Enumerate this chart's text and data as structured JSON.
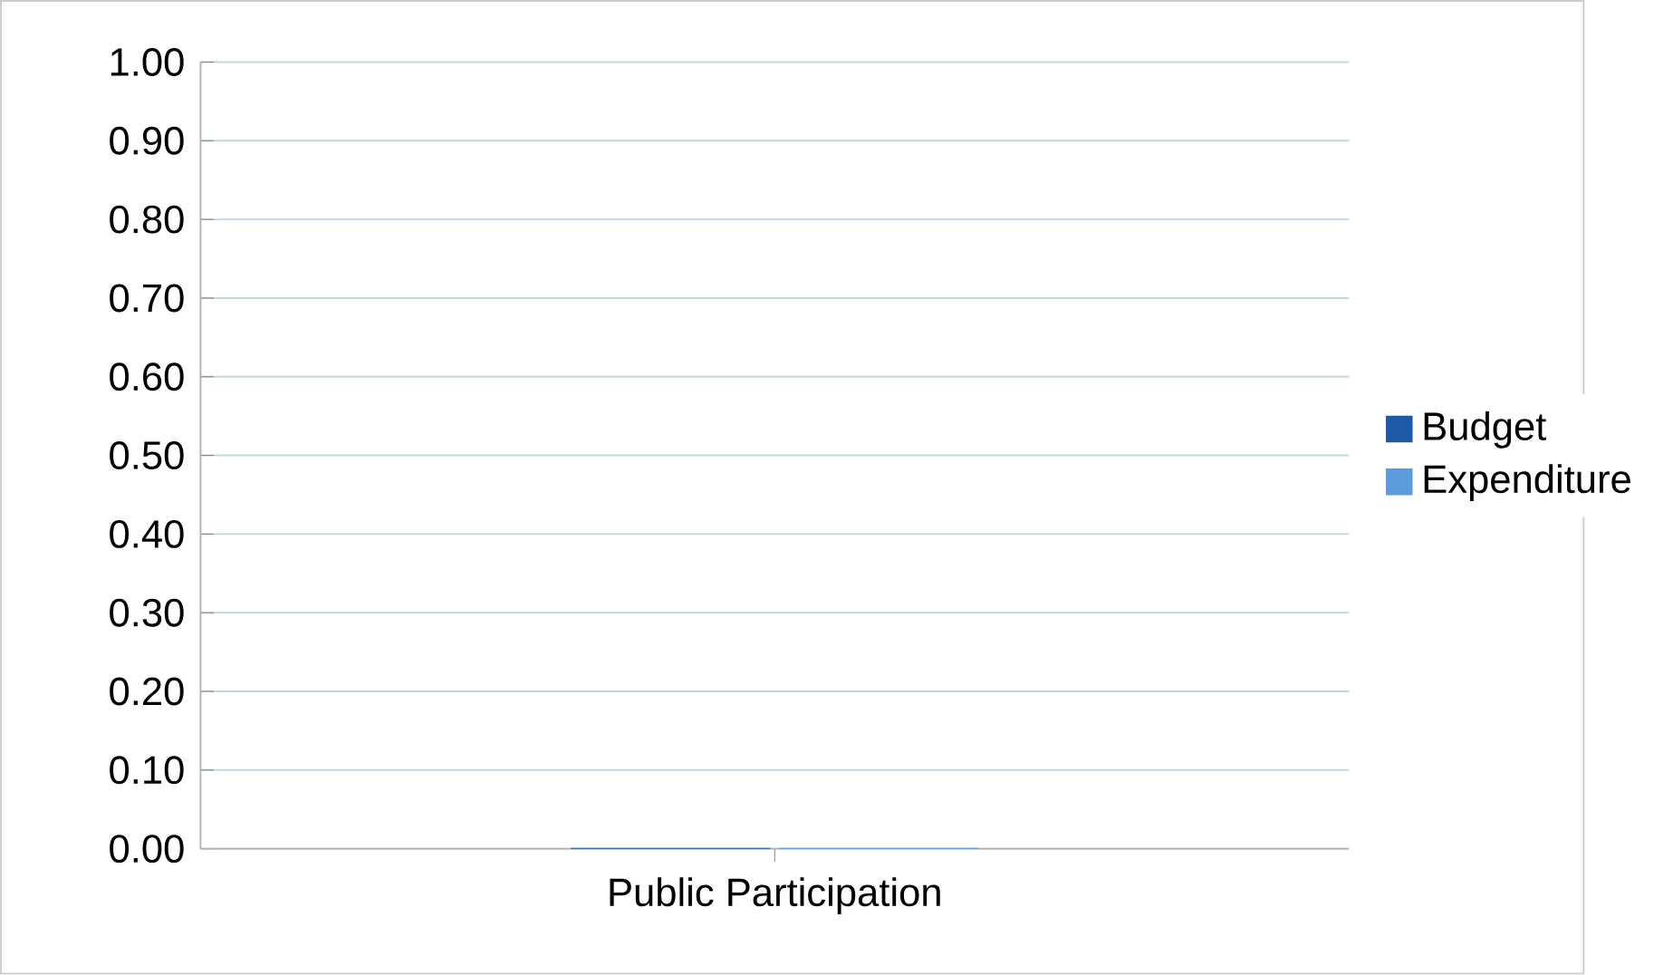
{
  "chart_data": {
    "type": "bar",
    "categories": [
      "Public Participation"
    ],
    "series": [
      {
        "name": "Budget",
        "color": "#1f5aa6",
        "values": [
          0
        ]
      },
      {
        "name": "Expenditure",
        "color": "#5b9bdb",
        "values": [
          0
        ]
      }
    ],
    "ylim": [
      0,
      1
    ],
    "yticks": [
      {
        "value": 0,
        "label": "0.00"
      },
      {
        "value": 0.1,
        "label": "0.10"
      },
      {
        "value": 0.2,
        "label": "0.20"
      },
      {
        "value": 0.3,
        "label": "0.30"
      },
      {
        "value": 0.4,
        "label": "0.40"
      },
      {
        "value": 0.5,
        "label": "0.50"
      },
      {
        "value": 0.6,
        "label": "0.60"
      },
      {
        "value": 0.7,
        "label": "0.70"
      },
      {
        "value": 0.8,
        "label": "0.80"
      },
      {
        "value": 0.9,
        "label": "0.90"
      },
      {
        "value": 1,
        "label": "1.00"
      }
    ],
    "grid": "y",
    "legend": "right"
  }
}
